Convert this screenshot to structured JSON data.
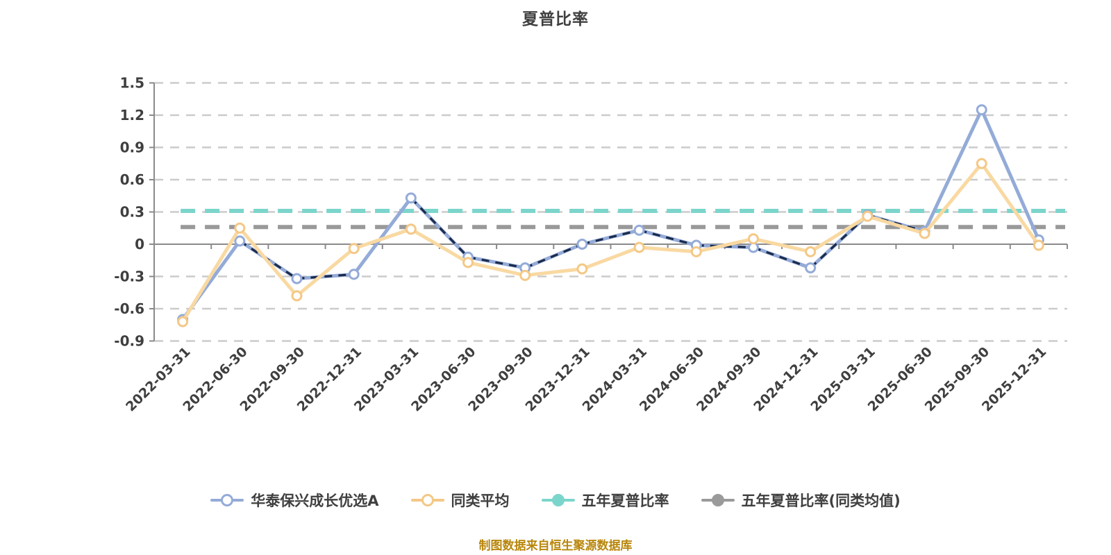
{
  "title": "夏普比率",
  "footer": "制图数据来自恒生聚源数据库",
  "legend": {
    "items": [
      {
        "label": "华泰保兴成长优选A",
        "color": "#94abd8",
        "marker": "hollow"
      },
      {
        "label": "同类平均",
        "color": "#f4c886",
        "marker": "hollow"
      },
      {
        "label": "五年夏普比率",
        "color": "#7cd5cb",
        "marker": "solid"
      },
      {
        "label": "五年夏普比率(同类均值)",
        "color": "#9a9a9a",
        "marker": "solid"
      }
    ]
  },
  "chart_data": {
    "type": "line",
    "title": "夏普比率",
    "categories": [
      "2022-03-31",
      "2022-06-30",
      "2022-09-30",
      "2022-12-31",
      "2023-03-31",
      "2023-06-30",
      "2023-09-30",
      "2023-12-31",
      "2024-03-31",
      "2024-06-30",
      "2024-09-30",
      "2024-12-31",
      "2025-03-31",
      "2025-06-30",
      "2025-09-30",
      "2025-12-31"
    ],
    "series": [
      {
        "name": "华泰保兴成长优选A",
        "type": "line",
        "color": "#94abd8",
        "overlay_dash_color": "#1b2a4a",
        "marker": "hollow",
        "values": [
          -0.7,
          0.03,
          -0.32,
          -0.28,
          0.43,
          -0.12,
          -0.22,
          0.0,
          0.13,
          -0.01,
          -0.03,
          -0.22,
          0.27,
          0.12,
          1.25,
          0.04
        ]
      },
      {
        "name": "同类平均",
        "type": "line",
        "color": "#f9d9a2",
        "ring_color": "#f4c886",
        "marker": "hollow",
        "values": [
          -0.72,
          0.15,
          -0.48,
          -0.04,
          0.14,
          -0.17,
          -0.29,
          -0.23,
          -0.03,
          -0.07,
          0.05,
          -0.07,
          0.26,
          0.1,
          0.75,
          -0.01
        ]
      },
      {
        "name": "五年夏普比率",
        "type": "horizontal-dashed",
        "color": "#7cd5cb",
        "value": 0.31
      },
      {
        "name": "五年夏普比率(同类均值)",
        "type": "horizontal-dashed",
        "color": "#999999",
        "value": 0.16
      }
    ],
    "ylim": [
      -0.9,
      1.5
    ],
    "yticks": [
      1.5,
      1.2,
      0.9,
      0.6,
      0.3,
      0,
      -0.3,
      -0.6,
      -0.9
    ],
    "grid": "dashed horizontal",
    "legend_position": "bottom",
    "xlabel": "",
    "ylabel": ""
  }
}
